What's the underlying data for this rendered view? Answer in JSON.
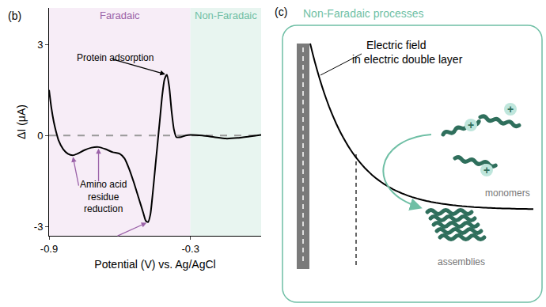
{
  "chart_data": {
    "type": "line",
    "panel_label": "(b)",
    "xlabel": "Potential (V) vs. Ag/AgCl",
    "ylabel": "ΔI (μA)",
    "x": [
      -0.9,
      -0.89,
      -0.88,
      -0.87,
      -0.86,
      -0.84,
      -0.82,
      -0.8,
      -0.78,
      -0.75,
      -0.72,
      -0.69,
      -0.66,
      -0.63,
      -0.6,
      -0.58,
      -0.56,
      -0.54,
      -0.52,
      -0.5,
      -0.49,
      -0.48,
      -0.47,
      -0.46,
      -0.45,
      -0.44,
      -0.43,
      -0.42,
      -0.41,
      -0.4,
      -0.39,
      -0.38,
      -0.37,
      -0.36,
      -0.34,
      -0.32,
      -0.3,
      -0.25,
      -0.2,
      -0.15,
      -0.1,
      -0.05,
      0
    ],
    "values": [
      1.5,
      0.9,
      0.45,
      0.12,
      -0.15,
      -0.45,
      -0.6,
      -0.65,
      -0.6,
      -0.48,
      -0.4,
      -0.38,
      -0.45,
      -0.55,
      -0.6,
      -0.75,
      -1.1,
      -1.55,
      -2.05,
      -2.55,
      -2.8,
      -2.85,
      -2.6,
      -1.9,
      -1.1,
      -0.3,
      0.5,
      1.3,
      1.85,
      2.0,
      1.6,
      0.8,
      0.2,
      -0.05,
      -0.05,
      0.0,
      0.02,
      0.0,
      -0.05,
      -0.1,
      -0.08,
      -0.03,
      0.02
    ],
    "color": "#000000",
    "xlim": [
      -0.9,
      0
    ],
    "xticks": [
      -0.9,
      -0.3
    ],
    "ylim": [
      -3.3,
      4.2
    ],
    "yticks": [
      -3,
      0,
      3
    ],
    "grid": false,
    "hline": {
      "y": 0,
      "color": "#999999",
      "line_style": "dash"
    },
    "regions": [
      {
        "label": "Faradaic",
        "x0": -0.9,
        "x1": -0.3,
        "color": "#f7edf7",
        "label_color": "#9b62a8"
      },
      {
        "label": "Non-Faradaic",
        "x0": -0.3,
        "x1": 0,
        "color": "#e8f5f0",
        "label_color": "#6fbfa5"
      }
    ],
    "annotations": [
      {
        "text": [
          "Protein adsorption"
        ],
        "x": -0.62,
        "y": 2.55,
        "points": [
          [
            -0.4,
            2.0
          ]
        ],
        "color": "#000000"
      },
      {
        "text": [
          "Amino acid",
          "residue",
          "reduction"
        ],
        "x": -0.67,
        "y": -2.0,
        "points": [
          [
            -0.8,
            -0.65
          ],
          [
            -0.69,
            -0.38
          ],
          [
            -0.48,
            -2.85
          ]
        ],
        "color": "#9b62a8"
      }
    ]
  },
  "diagram": {
    "panel_label": "(c)",
    "title": "Non-Faradaic processes",
    "field_label": [
      "Electric field",
      "in electric double layer"
    ],
    "charge": "+",
    "monomers_label": "monomers",
    "assemblies_label": "assemblies",
    "color": "#6fbfa5"
  }
}
